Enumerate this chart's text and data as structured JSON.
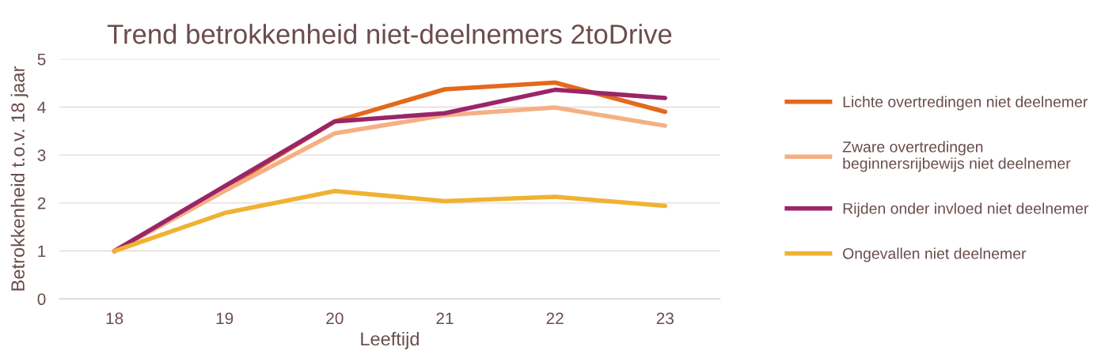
{
  "chart_data": {
    "type": "line",
    "title": "Trend betrokkenheid niet-deelnemers 2toDrive",
    "xlabel": "Leeftijd",
    "ylabel": "Betrokkenheid t.o.v. 18 jaar",
    "categories": [
      "18",
      "19",
      "20",
      "21",
      "22",
      "23"
    ],
    "series": [
      {
        "name": "Lichte overtredingen niet deelnemer",
        "color": "#e3691c",
        "values": [
          1,
          2.3,
          3.7,
          4.37,
          4.51,
          3.9
        ]
      },
      {
        "name": "Zware overtredingen\nbeginnersrijbewijs niet deelnemer",
        "color": "#f4b084",
        "values": [
          1,
          2.25,
          3.45,
          3.83,
          3.99,
          3.61
        ]
      },
      {
        "name": "Rijden onder invloed niet deelnemer",
        "color": "#9b2568",
        "values": [
          1,
          2.35,
          3.7,
          3.87,
          4.36,
          4.19
        ]
      },
      {
        "name": "Ongevallen niet deelnemer",
        "color": "#f0b232",
        "values": [
          1,
          1.79,
          2.25,
          2.04,
          2.13,
          1.94
        ]
      }
    ],
    "ylim": [
      0,
      5
    ],
    "yticks": [
      0,
      1,
      2,
      3,
      4,
      5
    ],
    "grid": "y",
    "legend": "right",
    "marker": "none",
    "line_style": "solid"
  }
}
